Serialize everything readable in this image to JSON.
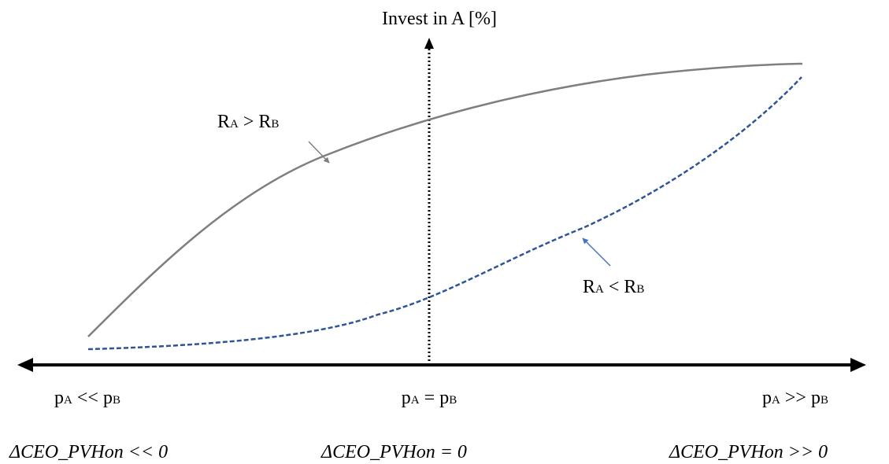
{
  "y_axis": {
    "label": "Invest in A [%]"
  },
  "curves": {
    "ra_greater": {
      "label": {
        "r1": "R",
        "s1": "A",
        "op": " > ",
        "r2": "R",
        "s2": "B"
      },
      "color": "#7f7f7f"
    },
    "ra_less": {
      "label": {
        "r1": "R",
        "s1": "A",
        "op": " < ",
        "r2": "R",
        "s2": "B"
      },
      "color": "#2f5597",
      "arrow_color": "#4472c4"
    }
  },
  "x_ticks": {
    "left": {
      "p1": "p",
      "s1": "A",
      "op": " << ",
      "p2": "p",
      "s2": "B"
    },
    "center": {
      "p1": "p",
      "s1": "A",
      "op": " = ",
      "p2": "p",
      "s2": "B"
    },
    "right": {
      "p1": "p",
      "s1": "A",
      "op": " >> ",
      "p2": "p",
      "s2": "B"
    }
  },
  "delta_labels": {
    "left": "ΔCEO_PVHon << 0",
    "center": "ΔCEO_PVHon = 0",
    "right": "ΔCEO_PVHon >> 0"
  }
}
